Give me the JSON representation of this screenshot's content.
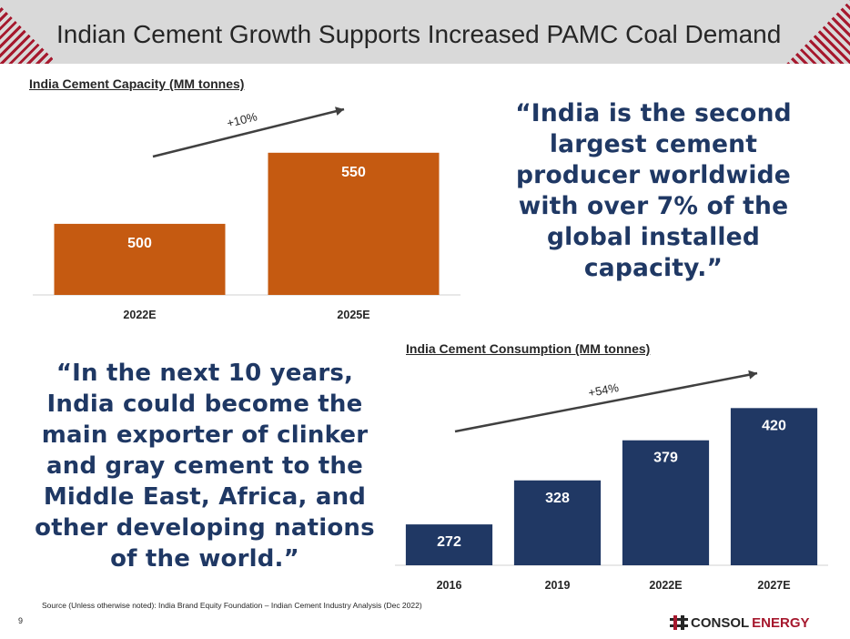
{
  "header": {
    "title": "Indian Cement Growth Supports Increased PAMC Coal Demand"
  },
  "quotes": {
    "top_right": "“India is the second largest cement producer worldwide with over 7% of the global installed capacity.”",
    "bottom_left": "“In the next 10 years, India could become the main exporter of clinker and gray cement to the Middle East, Africa, and other developing nations of the world.”"
  },
  "footer": {
    "source": "Source (Unless otherwise noted): India Brand Equity Foundation – Indian Cement Industry Analysis (Dec 2022)",
    "page_number": "9",
    "logo_consol": "CONSOL",
    "logo_energy": "ENERGY"
  },
  "colors": {
    "header_bg": "#d9d9d9",
    "brand_red": "#a6192e",
    "capacity_bar": "#c55a11",
    "consumption_bar": "#203864",
    "quote_text": "#1f3864"
  },
  "chart_data": [
    {
      "type": "bar",
      "title": "India Cement Capacity (MM tonnes)",
      "categories": [
        "2022E",
        "2025E"
      ],
      "values": [
        500,
        550
      ],
      "data_labels": [
        "500",
        "550"
      ],
      "growth_annotation": "+10%",
      "color": "#c55a11",
      "ylim": [
        450,
        555
      ],
      "grid": false
    },
    {
      "type": "bar",
      "title": "India Cement Consumption (MM tonnes)",
      "categories": [
        "2016",
        "2019",
        "2022E",
        "2027E"
      ],
      "values": [
        272,
        328,
        379,
        420
      ],
      "data_labels": [
        "272",
        "328",
        "379",
        "420"
      ],
      "growth_annotation": "+54%",
      "color": "#203864",
      "ylim": [
        220,
        425
      ],
      "grid": false
    }
  ]
}
